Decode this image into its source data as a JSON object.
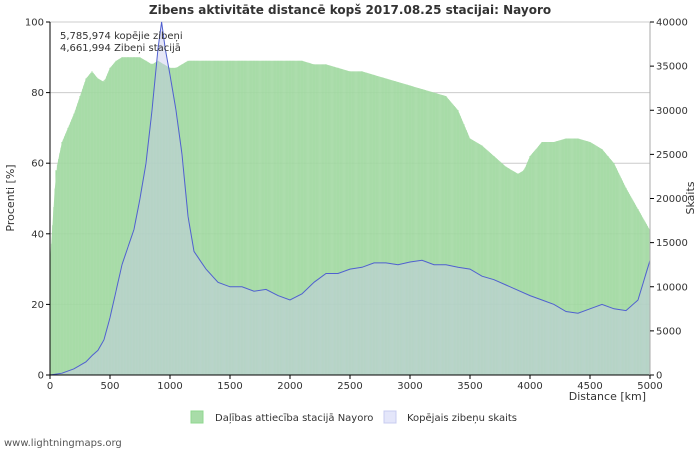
{
  "chart_data": {
    "type": "area",
    "title": "Zibens aktivitāte distancē kopš 2017.08.25 stacijai: Nayoro",
    "xlabel": "Distance   [km]",
    "ylabel_left": "Procenti   [%]",
    "ylabel_right": "Skaits",
    "xlim": [
      0,
      5000
    ],
    "ylim_left": [
      0,
      100
    ],
    "ylim_right": [
      0,
      40000
    ],
    "x_ticks": [
      "0",
      "500",
      "1000",
      "1500",
      "2000",
      "2500",
      "3000",
      "3500",
      "4000",
      "4500",
      "5000"
    ],
    "y_left_ticks": [
      "0",
      "20",
      "40",
      "60",
      "80",
      "100"
    ],
    "y_right_ticks": [
      "0",
      "5000",
      "10000",
      "15000",
      "20000",
      "25000",
      "30000",
      "35000",
      "40000"
    ],
    "grid": true,
    "annotations": [
      "5,785,974 kopējie zibeņi",
      "4,661,994 Zibeņi stacijā"
    ],
    "legend": [
      "Daļības attiecība stacijā Nayoro",
      "Kopējais zibeņu skaits"
    ],
    "legend_position": "bottom",
    "series": [
      {
        "name": "Daļības attiecība stacijā Nayoro",
        "axis": "left",
        "style": "bar-area",
        "color": "#8fd88f",
        "x": [
          0,
          50,
          100,
          150,
          200,
          250,
          300,
          350,
          400,
          450,
          500,
          550,
          600,
          650,
          700,
          750,
          800,
          850,
          900,
          950,
          1000,
          1050,
          1100,
          1150,
          1200,
          1300,
          1400,
          1500,
          1600,
          1700,
          1800,
          1900,
          2000,
          2100,
          2200,
          2300,
          2400,
          2500,
          2600,
          2700,
          2800,
          2900,
          3000,
          3100,
          3200,
          3300,
          3400,
          3450,
          3500,
          3600,
          3700,
          3800,
          3900,
          3950,
          4000,
          4100,
          4200,
          4300,
          4400,
          4500,
          4600,
          4650,
          4700,
          4800,
          4900,
          5000
        ],
        "values": [
          32,
          58,
          66,
          70,
          74,
          79,
          84,
          86,
          84,
          83,
          87,
          89,
          90,
          90,
          90,
          90,
          89,
          88,
          89,
          88,
          87,
          87,
          88,
          89,
          89,
          89,
          89,
          89,
          89,
          89,
          89,
          89,
          89,
          89,
          88,
          88,
          87,
          86,
          86,
          85,
          84,
          83,
          82,
          81,
          80,
          79,
          75,
          71,
          67,
          65,
          62,
          59,
          57,
          58,
          62,
          66,
          66,
          67,
          67,
          66,
          64,
          62,
          60,
          53,
          47,
          41
        ]
      },
      {
        "name": "Kopējais zibeņu skaits",
        "axis": "right",
        "style": "line",
        "color": "#5060d0",
        "x": [
          0,
          100,
          200,
          300,
          350,
          400,
          450,
          500,
          550,
          600,
          650,
          700,
          750,
          800,
          850,
          900,
          930,
          960,
          1000,
          1050,
          1100,
          1150,
          1200,
          1250,
          1300,
          1400,
          1500,
          1600,
          1700,
          1800,
          1900,
          2000,
          2100,
          2200,
          2300,
          2400,
          2500,
          2600,
          2700,
          2800,
          2900,
          3000,
          3100,
          3200,
          3300,
          3400,
          3500,
          3600,
          3700,
          3800,
          3900,
          4000,
          4100,
          4200,
          4300,
          4400,
          4500,
          4600,
          4700,
          4800,
          4900,
          5000
        ],
        "values": [
          0,
          200,
          700,
          1500,
          2200,
          2800,
          4000,
          6500,
          9500,
          12500,
          14500,
          16500,
          20000,
          24000,
          30000,
          37000,
          40000,
          37000,
          34000,
          30000,
          25000,
          18000,
          14000,
          13000,
          12000,
          10500,
          10000,
          10000,
          9500,
          9700,
          9000,
          8500,
          9200,
          10500,
          11500,
          11500,
          12000,
          12200,
          12700,
          12700,
          12500,
          12800,
          13000,
          12500,
          12500,
          12200,
          12000,
          11200,
          10800,
          10200,
          9600,
          9000,
          8500,
          8000,
          7200,
          7000,
          7500,
          8000,
          7500,
          7300,
          8500,
          13000
        ]
      }
    ]
  },
  "footer": {
    "credit": "www.lightningmaps.org"
  }
}
